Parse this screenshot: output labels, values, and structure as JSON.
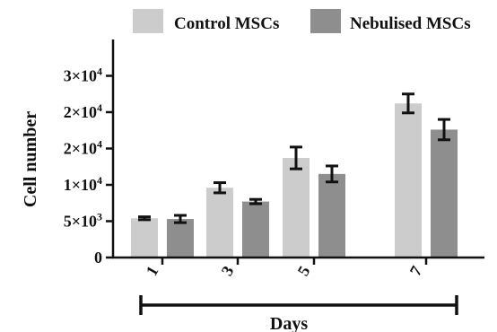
{
  "chart_data": {
    "type": "bar",
    "title": "",
    "xlabel": "Days",
    "ylabel": "Cell number",
    "categories": [
      "1",
      "3",
      "5",
      "7"
    ],
    "ylim": [
      0,
      30000
    ],
    "yticks": [
      {
        "value": 0,
        "label": "0"
      },
      {
        "value": 5000,
        "base": "5×10",
        "exp": "3"
      },
      {
        "value": 10000,
        "base": "1×10",
        "exp": "4"
      },
      {
        "value": 15000,
        "base": "2×10",
        "exp": "4"
      },
      {
        "value": 20000,
        "base": "2×10",
        "exp": "4"
      },
      {
        "value": 25000,
        "base": "3×10",
        "exp": "4"
      }
    ],
    "series": [
      {
        "name": "Control MSCs",
        "color": "#cccccc",
        "values": [
          5400,
          9600,
          13700,
          21200
        ],
        "errors": [
          200,
          700,
          1500,
          1300
        ]
      },
      {
        "name": "Nebulised MSCs",
        "color": "#8e8e8e",
        "values": [
          5300,
          7700,
          11500,
          17600
        ],
        "errors": [
          500,
          300,
          1100,
          1400
        ]
      }
    ],
    "grid": false,
    "legend": "top"
  }
}
